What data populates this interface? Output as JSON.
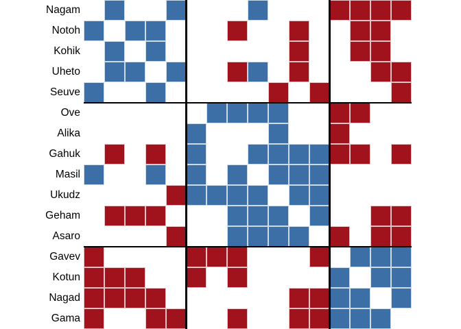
{
  "chart_data": {
    "type": "heatmap",
    "subtype": "block-adjacency-matrix",
    "title": "",
    "xlabel": "",
    "ylabel": "",
    "rows": [
      "Nagam",
      "Notoh",
      "Kohik",
      "Uheto",
      "Seuve",
      "Ove",
      "Alika",
      "Gahuk",
      "Masil",
      "Ukudz",
      "Geham",
      "Asaro",
      "Gavev",
      "Kotun",
      "Nagad",
      "Gama"
    ],
    "columns_same_as_rows": true,
    "cell_legend": {
      "B": "blue cell",
      "R": "red cell",
      ".": "empty cell"
    },
    "matrix": [
      ".B..B...B...RRRR",
      "B.BB...R..R..RR.",
      ".B.B......R..RR.",
      ".BB.B..RB.R...RR",
      "B..B.....R.R...R",
      "......BBBB..RR..",
      ".....B...B..R...",
      ".R.R.B..BBBBRR.R",
      "B..B.B.B.BBB....",
      "....RBBBB.BB....",
      ".RRR...BBB.B..RR",
      "....R..BBBB.R.RR",
      "R....RRR...R.BBB",
      "RRR..R.R....B.BB",
      "RRRR......RRBB.B",
      "R..RR..R..RRBBB."
    ],
    "block_boundaries_after_index": [
      5,
      12
    ],
    "blocks": [
      [
        "Nagam",
        "Notoh",
        "Kohik",
        "Uheto",
        "Seuve"
      ],
      [
        "Ove",
        "Alika",
        "Gahuk",
        "Masil",
        "Ukudz",
        "Geham",
        "Asaro"
      ],
      [
        "Gavev",
        "Kotun",
        "Nagad",
        "Gama"
      ]
    ],
    "colors": {
      "blue": "#3b6fa6",
      "red": "#a0121c",
      "empty": "#ffffff",
      "divider_line": "#000000",
      "label_text": "#000000"
    },
    "grid": "off",
    "legend_position": "none"
  }
}
